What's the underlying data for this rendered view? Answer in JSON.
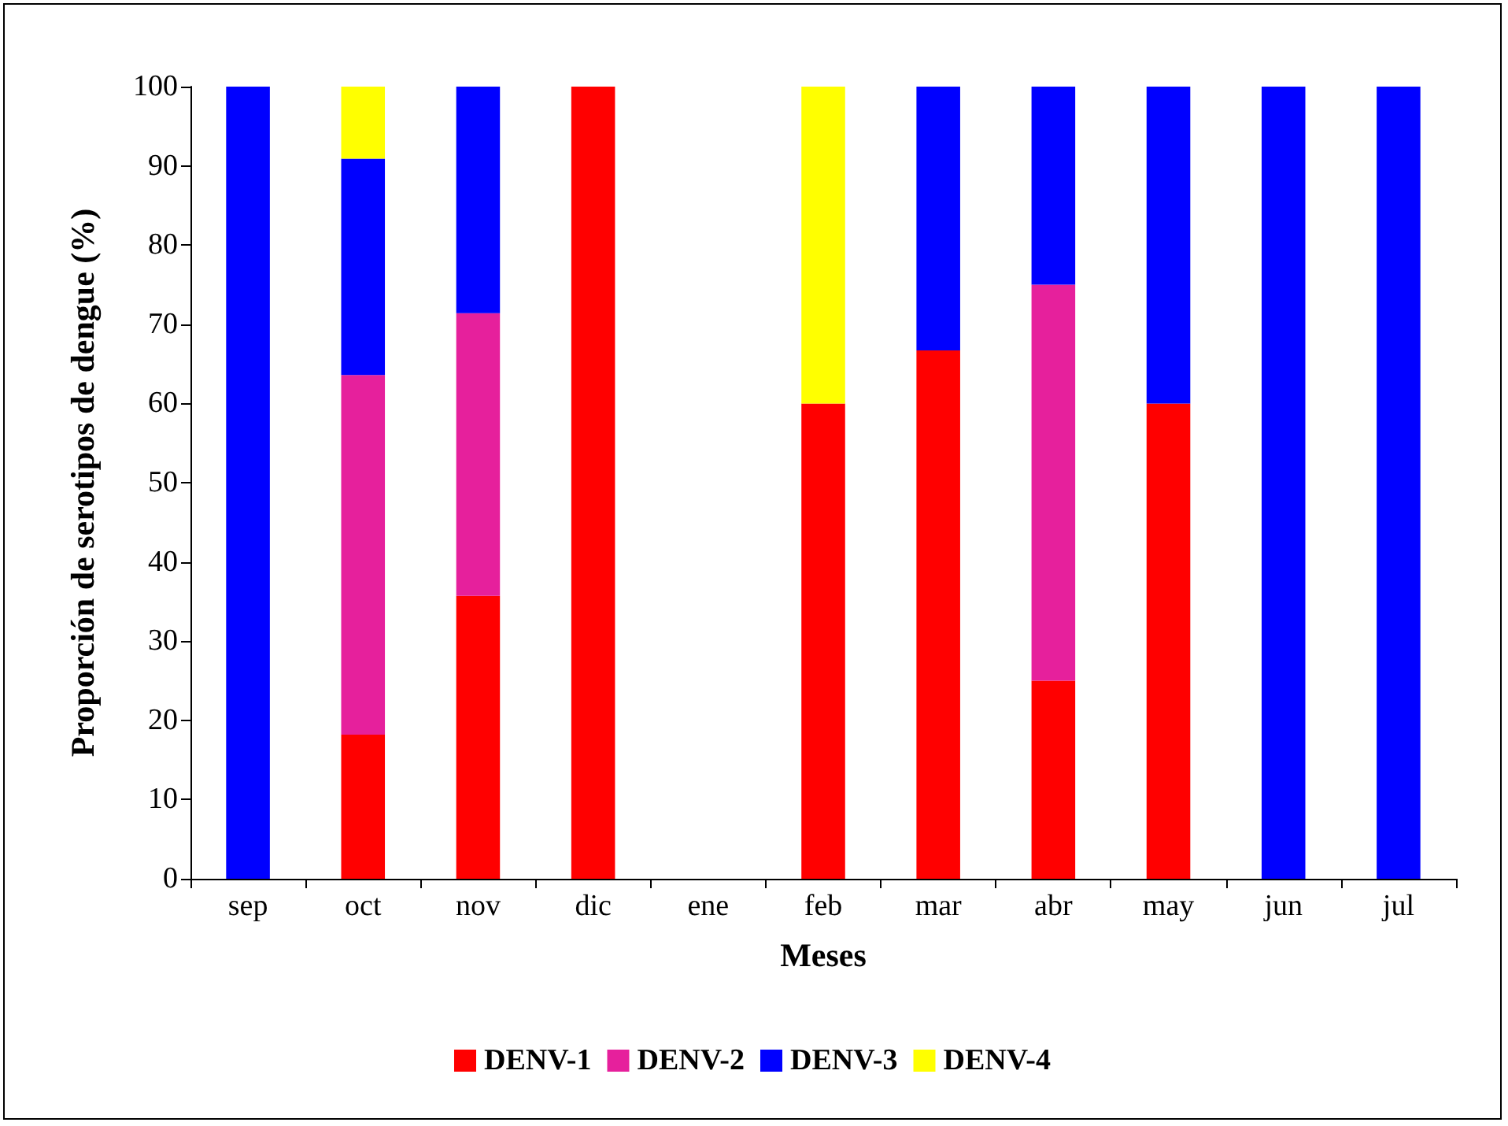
{
  "chart_data": {
    "type": "bar",
    "stacked": true,
    "xlabel": "Meses",
    "ylabel": "Proporción de serotipos de dengue (%)",
    "categories": [
      "sep",
      "oct",
      "nov",
      "dic",
      "ene",
      "feb",
      "mar",
      "abr",
      "may",
      "jun",
      "jul"
    ],
    "series": [
      {
        "name": "DENV-1",
        "color": "#ff0000",
        "values": [
          null,
          18.2,
          35.7,
          100,
          null,
          60,
          66.7,
          25,
          60,
          null,
          null
        ]
      },
      {
        "name": "DENV-2",
        "color": "#e6209c",
        "values": [
          null,
          45.4,
          35.7,
          null,
          null,
          null,
          null,
          50,
          null,
          null,
          null
        ]
      },
      {
        "name": "DENV-3",
        "color": "#0000ff",
        "values": [
          100,
          27.3,
          28.6,
          null,
          null,
          null,
          33.3,
          25,
          40,
          100,
          100
        ]
      },
      {
        "name": "DENV-4",
        "color": "#ffff00",
        "values": [
          null,
          9.1,
          null,
          null,
          null,
          40,
          null,
          null,
          null,
          null,
          null
        ]
      }
    ],
    "ylim": [
      0,
      100
    ],
    "yticks": [
      0,
      10,
      20,
      30,
      40,
      50,
      60,
      70,
      80,
      90,
      100
    ],
    "grid": false,
    "legend": "bottom"
  }
}
